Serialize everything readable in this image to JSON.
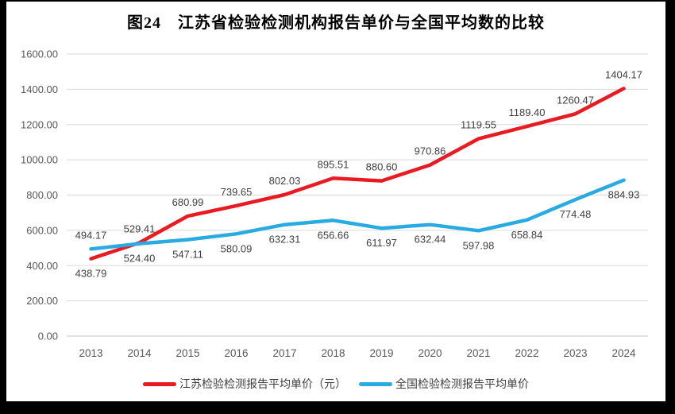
{
  "title": "图24　江苏省检验检测机构报告单价与全国平均数的比较",
  "colors": {
    "jiangsu_red": "#e81b22",
    "national_blue": "#29abe2",
    "gridline": "#d9d9d9",
    "axis_line": "#c6c6c6",
    "tick_text": "#595959",
    "data_label_text": "#404040",
    "frame_border": "#000000",
    "card_background": "#ffffff"
  },
  "chart_data": {
    "type": "line",
    "title": "图24　江苏省检验检测机构报告单价与全国平均数的比较",
    "categories": [
      "2013",
      "2014",
      "2015",
      "2016",
      "2017",
      "2018",
      "2019",
      "2020",
      "2021",
      "2022",
      "2023",
      "2024"
    ],
    "series": [
      {
        "name": "江苏检验检测报告平均单价（元）",
        "color": "#e81b22",
        "values": [
          438.79,
          529.41,
          680.99,
          739.65,
          802.03,
          895.51,
          880.6,
          970.86,
          1119.55,
          1189.4,
          1260.47,
          1404.17
        ],
        "label_default": "above",
        "label_overrides": {
          "0": "below"
        }
      },
      {
        "name": "全国检验检测报告平均单价",
        "color": "#29abe2",
        "values": [
          494.17,
          524.4,
          547.11,
          580.09,
          632.31,
          656.66,
          611.97,
          632.44,
          597.98,
          658.84,
          774.48,
          884.93
        ],
        "label_default": "below",
        "label_overrides": {
          "0": "above"
        }
      }
    ],
    "ylim": [
      0,
      1600
    ],
    "ytick_step": 200,
    "ytick_decimals": 2,
    "data_label_decimals": 2,
    "grid": true,
    "legend_position": "bottom",
    "xlabel": "",
    "ylabel": ""
  }
}
